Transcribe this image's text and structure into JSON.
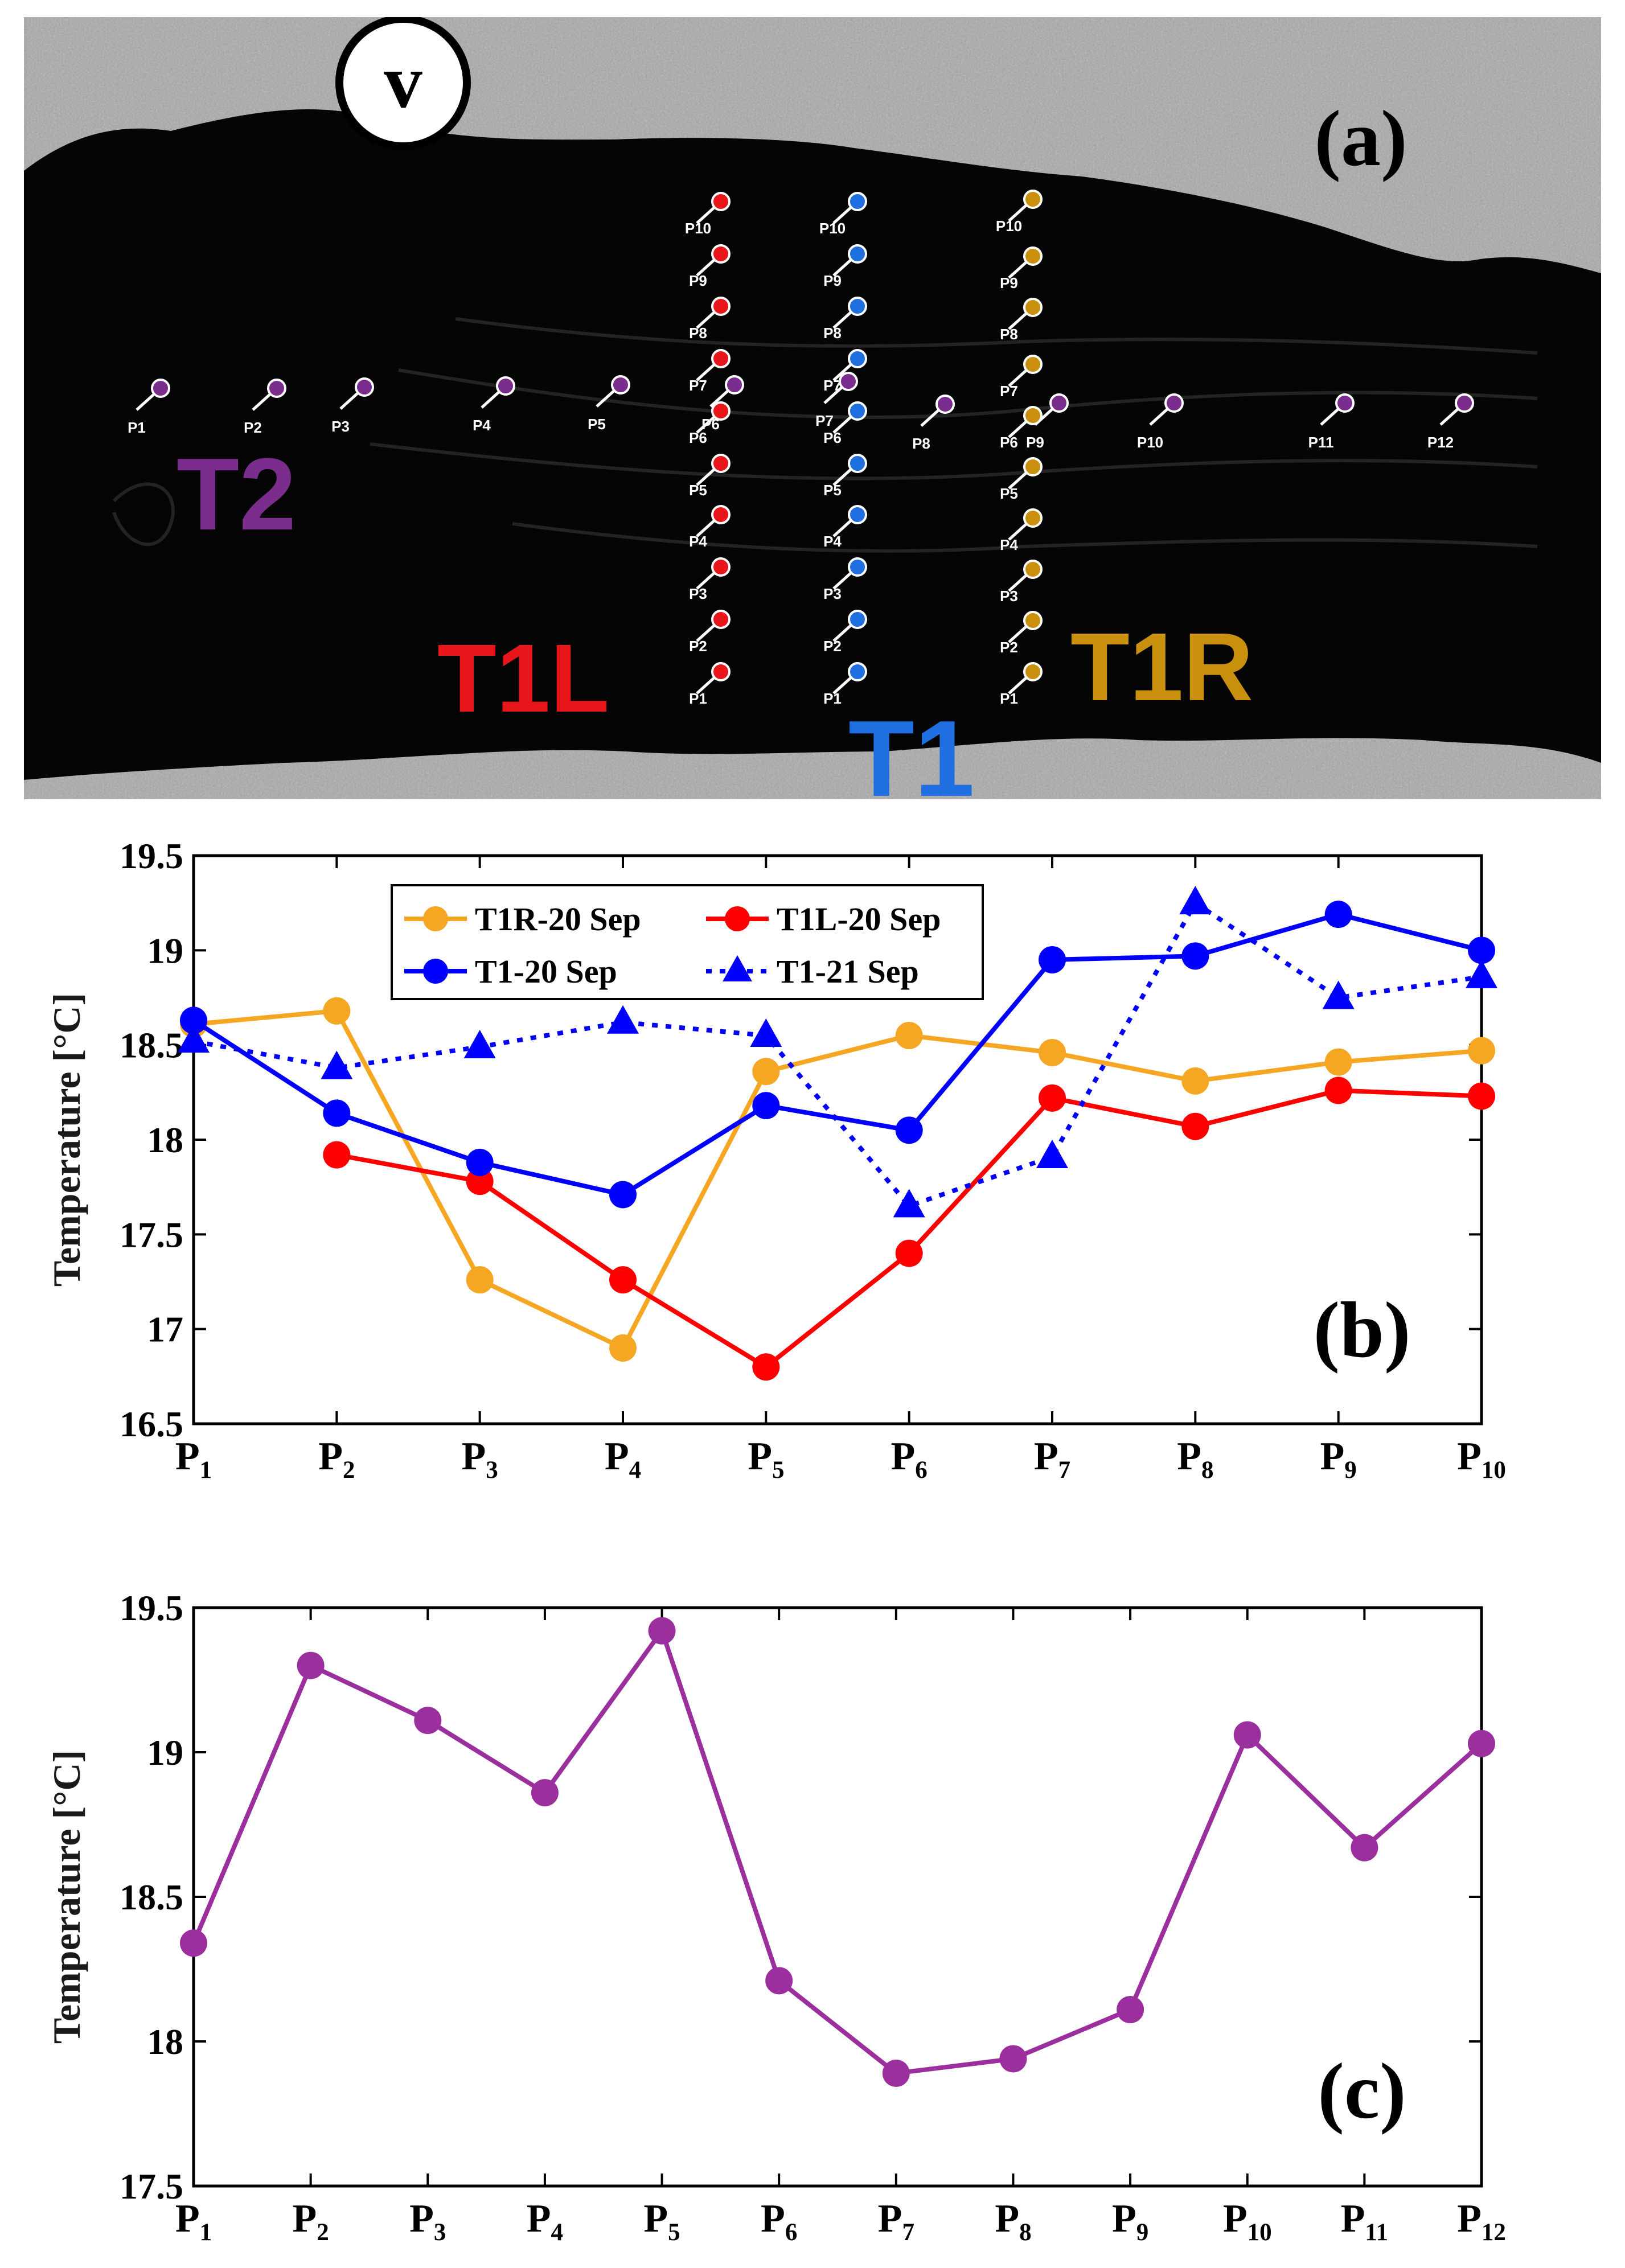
{
  "panel_a": {
    "panel_label": "(a)",
    "velocity_marker": "v",
    "transects": {
      "t2": {
        "name": "T2",
        "color": "#7b2d8e",
        "points": [
          "P1",
          "P2",
          "P3",
          "P4",
          "P5",
          "P6",
          "P7",
          "P8",
          "P9",
          "P10",
          "P11",
          "P12"
        ]
      },
      "t1l": {
        "name": "T1L",
        "color": "#e8151b",
        "points": [
          "P1",
          "P2",
          "P3",
          "P4",
          "P5",
          "P6",
          "P7",
          "P8",
          "P9",
          "P10"
        ]
      },
      "t1": {
        "name": "T1",
        "color": "#1f6fe0",
        "points": [
          "P1",
          "P2",
          "P3",
          "P4",
          "P5",
          "P6",
          "P7",
          "P8",
          "P9",
          "P10"
        ]
      },
      "t1r": {
        "name": "T1R",
        "color": "#c8900c",
        "points": [
          "P1",
          "P2",
          "P3",
          "P4",
          "P5",
          "P6",
          "P7",
          "P8",
          "P9",
          "P10"
        ]
      }
    }
  },
  "chart_data": [
    {
      "type": "line",
      "panel_label": "(b)",
      "ylabel": "Temperature [°C]",
      "xlabel": "",
      "categories": [
        "P1",
        "P2",
        "P3",
        "P4",
        "P5",
        "P6",
        "P7",
        "P8",
        "P9",
        "P10"
      ],
      "ylim": [
        16.5,
        19.5
      ],
      "yticks": [
        "16.5",
        "17",
        "17.5",
        "18",
        "18.5",
        "19",
        "19.5"
      ],
      "legend_position": "top-center",
      "series": [
        {
          "name": "T1R-20 Sep",
          "color": "#f5a623",
          "marker": "circle",
          "style": "solid",
          "values": [
            18.61,
            18.68,
            17.26,
            16.9,
            18.36,
            18.55,
            18.46,
            18.31,
            18.41,
            18.47
          ]
        },
        {
          "name": "T1L-20 Sep",
          "color": "#ff0000",
          "marker": "circle",
          "style": "solid",
          "values": [
            null,
            17.92,
            17.78,
            17.26,
            16.8,
            17.4,
            18.22,
            18.07,
            18.26,
            18.23
          ]
        },
        {
          "name": "T1-20 Sep",
          "color": "#0000ff",
          "marker": "circle",
          "style": "solid",
          "values": [
            18.63,
            18.14,
            17.88,
            17.71,
            18.18,
            18.05,
            18.95,
            18.97,
            19.19,
            19.0
          ]
        },
        {
          "name": "T1-21 Sep",
          "color": "#0000ff",
          "marker": "triangle",
          "style": "dotted",
          "values": [
            18.52,
            18.38,
            18.49,
            18.62,
            18.55,
            17.65,
            17.91,
            19.25,
            18.75,
            18.86
          ]
        }
      ]
    },
    {
      "type": "line",
      "panel_label": "(c)",
      "ylabel": "Temperature [°C]",
      "xlabel": "",
      "categories": [
        "P1",
        "P2",
        "P3",
        "P4",
        "P5",
        "P6",
        "P7",
        "P8",
        "P9",
        "P10",
        "P11",
        "P12"
      ],
      "ylim": [
        17.5,
        19.5
      ],
      "yticks": [
        "17.5",
        "18",
        "18.5",
        "19",
        "19.5"
      ],
      "series": [
        {
          "name": "T2",
          "color": "#9b2f9e",
          "marker": "circle",
          "style": "solid",
          "values": [
            18.34,
            19.3,
            19.11,
            18.86,
            19.42,
            18.21,
            17.89,
            17.94,
            18.11,
            19.06,
            18.67,
            19.03
          ]
        }
      ]
    }
  ]
}
